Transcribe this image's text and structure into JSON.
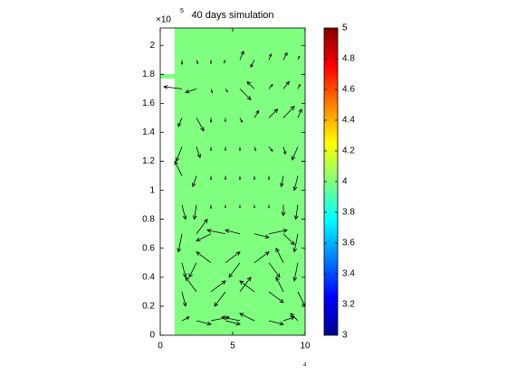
{
  "chart_data": {
    "type": "quiver",
    "title": "40 days simulation",
    "exponent_base": "×10",
    "y_exponent": "5",
    "x_exponent": "4",
    "xlim": [
      0,
      10
    ],
    "ylim": [
      0,
      2.12
    ],
    "xticks": [
      0,
      5,
      10
    ],
    "yticks": [
      0,
      0.2,
      0.4,
      0.6,
      0.8,
      1,
      1.2,
      1.4,
      1.6,
      1.8,
      2
    ],
    "field_value": 4,
    "field_color": "#80ff80",
    "field_x": [
      1,
      10
    ],
    "arrow_color": "#000000",
    "colorbar": {
      "lim": [
        3,
        5
      ],
      "ticks": [
        3,
        3.2,
        3.4,
        3.6,
        3.8,
        4,
        4.2,
        4.4,
        4.6,
        4.8,
        5
      ]
    },
    "grid_x": [
      1.5,
      2.5,
      3.5,
      4.5,
      5.5,
      6.5,
      7.5,
      8.5,
      9.5
    ],
    "grid_y": [
      1.9,
      1.7,
      1.5,
      1.3,
      1.1,
      0.9,
      0.7,
      0.5,
      0.3,
      0.1
    ],
    "u": [
      [
        0,
        0.2,
        0,
        -0.2,
        0.5,
        -0.5,
        0.3,
        0.5,
        0.2
      ],
      [
        -2.5,
        -1.5,
        0.2,
        0.3,
        1.5,
        -1,
        0.5,
        0.8,
        0.3
      ],
      [
        -0.5,
        1,
        0,
        0,
        0.3,
        0.6,
        1.2,
        1.5,
        0.5
      ],
      [
        -0.8,
        0.5,
        0,
        0,
        0,
        0.2,
        0.5,
        0.3,
        -0.8
      ],
      [
        -1,
        -0.5,
        0,
        0,
        0,
        0,
        0,
        -0.3,
        -0.5
      ],
      [
        0.5,
        -0.3,
        0,
        0,
        0,
        0,
        0,
        0,
        -0.3
      ],
      [
        -0.5,
        1.5,
        -2,
        -2.5,
        -2,
        2,
        2.5,
        1.5,
        -0.5
      ],
      [
        0.5,
        -1,
        -2,
        2,
        -1.5,
        2,
        1.5,
        -1,
        -0.5
      ],
      [
        0.5,
        -1.5,
        2,
        -1.5,
        1.5,
        -2,
        2,
        -1,
        1
      ],
      [
        1,
        2,
        2.5,
        2,
        -2.5,
        -2,
        2,
        1.5,
        -1
      ]
    ],
    "v": [
      [
        -0.6,
        -0.5,
        -0.5,
        -0.4,
        1.2,
        -1,
        0.8,
        1,
        0.5
      ],
      [
        0.3,
        -0.5,
        -0.5,
        -0.4,
        -1.5,
        1,
        0.6,
        1,
        0.6
      ],
      [
        -1.2,
        -1.8,
        -0.6,
        -0.5,
        -0.6,
        1,
        1.2,
        1.6,
        1.2
      ],
      [
        -2,
        -1.5,
        -0.5,
        -0.5,
        -0.5,
        -0.5,
        -0.6,
        -1,
        -1.8
      ],
      [
        2,
        -1.5,
        -0.5,
        -0.5,
        -0.5,
        -0.5,
        -0.5,
        -1.5,
        -2
      ],
      [
        -2,
        -2,
        -0.5,
        -0.4,
        -0.4,
        -0.4,
        -0.4,
        -1.5,
        -2
      ],
      [
        -2.5,
        2,
        -1,
        0.5,
        0.5,
        -0.5,
        0.5,
        -1.5,
        -2.5
      ],
      [
        -2,
        -2,
        1.5,
        1.5,
        -2,
        1.5,
        -2,
        2,
        -2.5
      ],
      [
        -2,
        2,
        1.5,
        -2,
        2,
        1.5,
        -1.5,
        2,
        -2
      ],
      [
        0.5,
        -0.5,
        0.5,
        -0.5,
        0.5,
        1,
        -0.5,
        0.5,
        1
      ]
    ]
  }
}
